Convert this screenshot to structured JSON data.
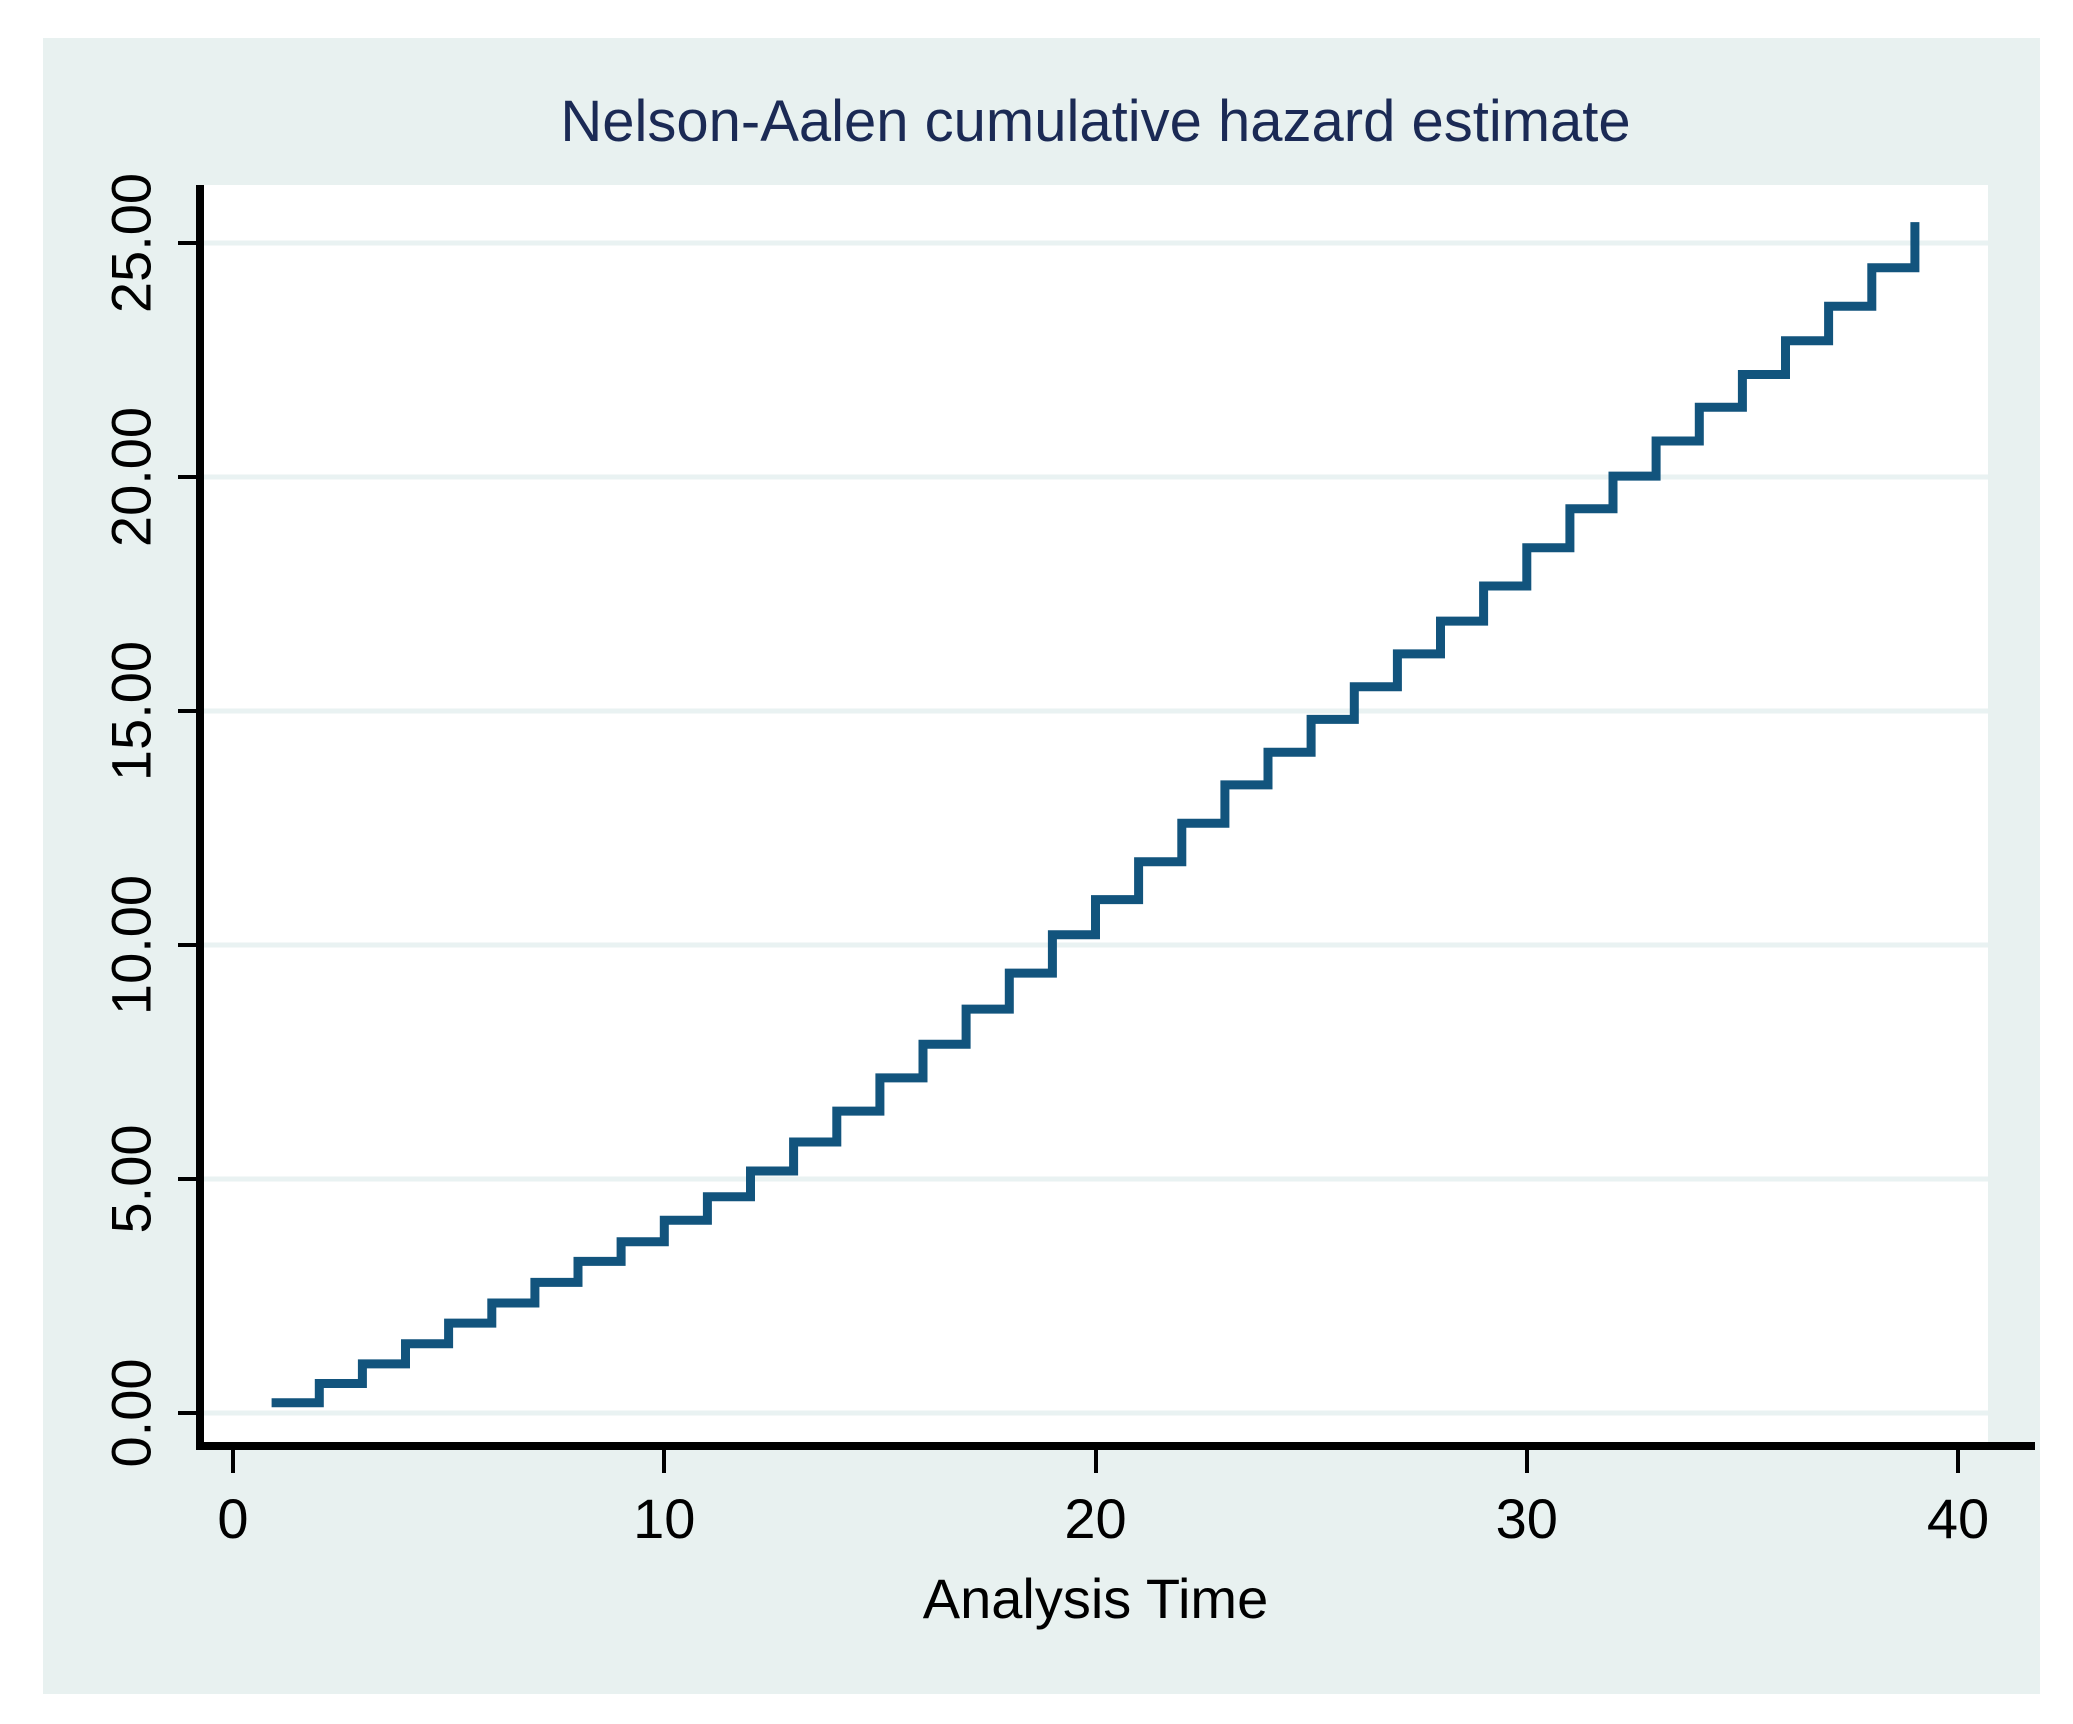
{
  "page": {
    "background": "#ffffff"
  },
  "chart_data": {
    "type": "line",
    "subtype": "step",
    "step_mode": "hv",
    "title": "Nelson-Aalen cumulative hazard estimate",
    "xlabel": "Analysis Time",
    "ylabel": "",
    "xlim": [
      0,
      40
    ],
    "ylim": [
      0,
      25.6
    ],
    "grid": "horizontal-gridlines-at-y-ticks",
    "legend": "none",
    "x_ticks": [
      {
        "value": 0,
        "label": "0"
      },
      {
        "value": 10,
        "label": "10"
      },
      {
        "value": 20,
        "label": "20"
      },
      {
        "value": 30,
        "label": "30"
      },
      {
        "value": 40,
        "label": "40"
      }
    ],
    "y_ticks": [
      {
        "value": 0,
        "label": "0.00"
      },
      {
        "value": 5,
        "label": "5.00"
      },
      {
        "value": 10,
        "label": "10.00"
      },
      {
        "value": 15,
        "label": "15.00"
      },
      {
        "value": 20,
        "label": "20.00"
      },
      {
        "value": 25,
        "label": "25.00"
      }
    ],
    "series": [
      {
        "name": "Nelson-Aalen cumulative hazard",
        "x": [
          1,
          2,
          3,
          4,
          5,
          6,
          7,
          8,
          9,
          10,
          11,
          12,
          13,
          14,
          15,
          16,
          17,
          18,
          19,
          20,
          21,
          22,
          23,
          24,
          25,
          26,
          27,
          28,
          29,
          30,
          31,
          32,
          33,
          34,
          35,
          36,
          37,
          38,
          39
        ],
        "y": [
          0.22,
          0.63,
          1.05,
          1.48,
          1.92,
          2.35,
          2.79,
          3.24,
          3.66,
          4.12,
          4.62,
          5.17,
          5.79,
          6.45,
          7.16,
          7.88,
          8.63,
          9.4,
          10.22,
          10.97,
          11.78,
          12.6,
          13.42,
          14.12,
          14.82,
          15.52,
          16.22,
          16.92,
          17.67,
          18.49,
          19.32,
          20.02,
          20.77,
          21.49,
          22.19,
          22.91,
          23.65,
          24.47,
          25.35
        ]
      }
    ],
    "colors": {
      "line": "#12547d",
      "plot_background": "#ffffff",
      "graph_background": "#e8f1f0",
      "gridline": "#e9f2f2",
      "axis": "#000000",
      "title_text": "#1b2a55",
      "tick_text": "#000000"
    }
  }
}
